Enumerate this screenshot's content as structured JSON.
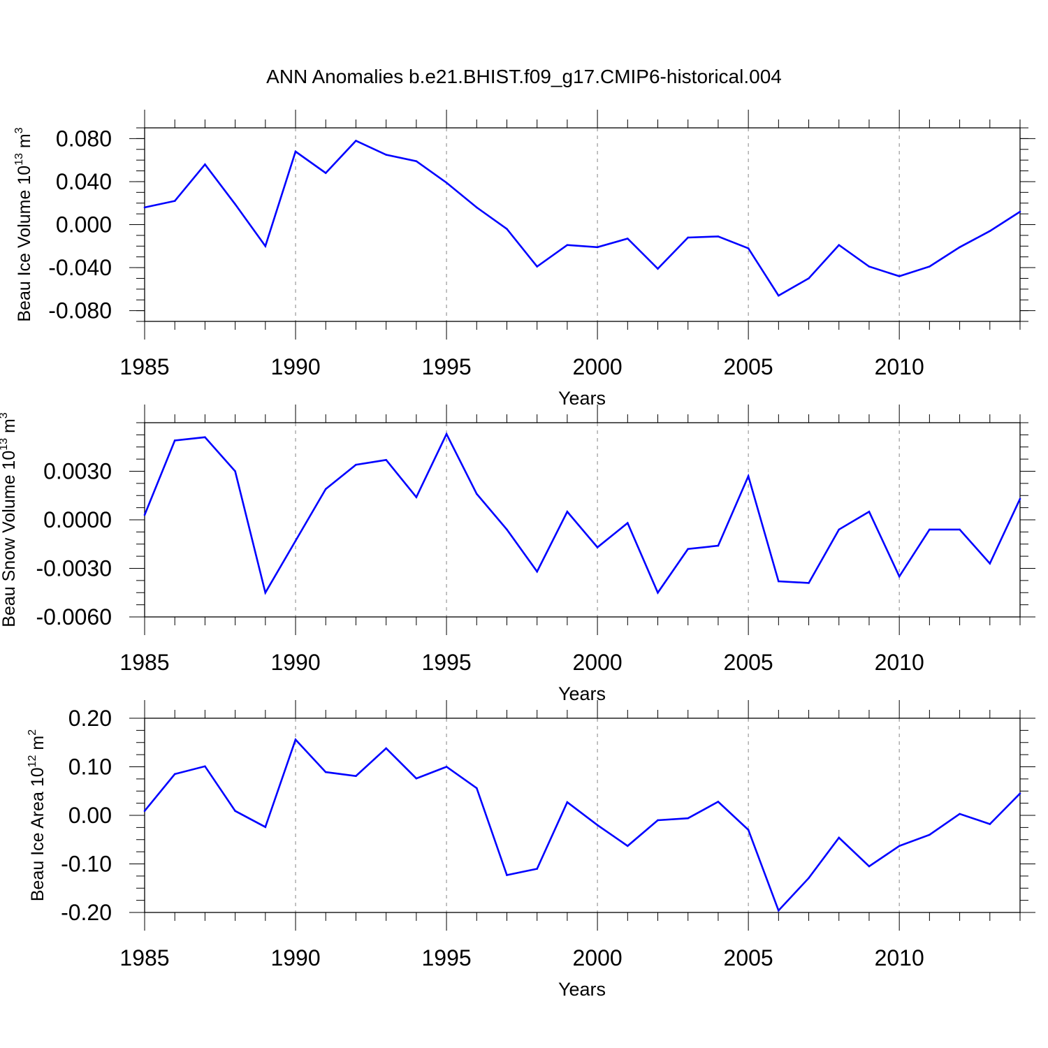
{
  "figure_title": "ANN Anomalies b.e21.BHIST.f09_g17.CMIP6-historical.004",
  "line_color": "#0000ff",
  "grid_color": "#999999",
  "chart_data": [
    {
      "type": "line",
      "ylabel": {
        "prefix": "Beau Ice Volume 10",
        "exponent": "13",
        "unit": " m",
        "unit_exponent": "3"
      },
      "xlabel": "Years",
      "xlim": [
        1985,
        2014
      ],
      "ylim": [
        -0.09,
        0.09
      ],
      "x_ticks": [
        "1985",
        "1990",
        "1995",
        "2000",
        "2005",
        "2010"
      ],
      "y_ticks": [
        {
          "value": 0.08,
          "label": "0.080"
        },
        {
          "value": 0.04,
          "label": "0.040"
        },
        {
          "value": 0.0,
          "label": "0.000"
        },
        {
          "value": -0.04,
          "label": "-0.040"
        },
        {
          "value": -0.08,
          "label": "-0.080"
        }
      ],
      "x": [
        1985,
        1986,
        1987,
        1988,
        1989,
        1990,
        1991,
        1992,
        1993,
        1994,
        1995,
        1996,
        1997,
        1998,
        1999,
        2000,
        2001,
        2002,
        2003,
        2004,
        2005,
        2006,
        2007,
        2008,
        2009,
        2010,
        2011,
        2012,
        2013,
        2014
      ],
      "values": [
        0.016,
        0.022,
        0.056,
        0.019,
        -0.02,
        0.068,
        0.048,
        0.078,
        0.065,
        0.059,
        0.039,
        0.016,
        -0.004,
        -0.039,
        -0.019,
        -0.021,
        -0.013,
        -0.041,
        -0.012,
        -0.011,
        -0.022,
        -0.066,
        -0.05,
        -0.019,
        -0.039,
        -0.048,
        -0.039,
        -0.021,
        -0.006,
        0.012
      ]
    },
    {
      "type": "line",
      "ylabel": {
        "prefix": "Beau Snow Volume 10",
        "exponent": "13",
        "unit": " m",
        "unit_exponent": "3"
      },
      "xlabel": "Years",
      "xlim": [
        1985,
        2014
      ],
      "ylim": [
        -0.006,
        0.006
      ],
      "x_ticks": [
        "1985",
        "1990",
        "1995",
        "2000",
        "2005",
        "2010"
      ],
      "y_ticks": [
        {
          "value": 0.003,
          "label": "0.0030"
        },
        {
          "value": 0.0,
          "label": "0.0000"
        },
        {
          "value": -0.003,
          "label": "-0.0030"
        },
        {
          "value": -0.006,
          "label": "-0.0060"
        }
      ],
      "x": [
        1985,
        1986,
        1987,
        1988,
        1989,
        1990,
        1991,
        1992,
        1993,
        1994,
        1995,
        1996,
        1997,
        1998,
        1999,
        2000,
        2001,
        2002,
        2003,
        2004,
        2005,
        2006,
        2007,
        2008,
        2009,
        2010,
        2011,
        2012,
        2013,
        2014
      ],
      "values": [
        0.0003,
        0.0049,
        0.0051,
        0.003,
        -0.0045,
        -0.0013,
        0.0019,
        0.0034,
        0.0037,
        0.0014,
        0.0053,
        0.0016,
        -0.0006,
        -0.0032,
        0.0005,
        -0.0017,
        -0.0002,
        -0.0045,
        -0.0018,
        -0.0016,
        0.0027,
        -0.0038,
        -0.0039,
        -0.0006,
        0.0005,
        -0.0035,
        -0.0006,
        -0.0006,
        -0.0027,
        0.0013
      ]
    },
    {
      "type": "line",
      "ylabel": {
        "prefix": "Beau Ice Area 10",
        "exponent": "12",
        "unit": " m",
        "unit_exponent": "2"
      },
      "xlabel": "Years",
      "xlim": [
        1985,
        2014
      ],
      "ylim": [
        -0.2,
        0.2
      ],
      "x_ticks": [
        "1985",
        "1990",
        "1995",
        "2000",
        "2005",
        "2010"
      ],
      "y_ticks": [
        {
          "value": 0.2,
          "label": "0.20"
        },
        {
          "value": 0.1,
          "label": "0.10"
        },
        {
          "value": 0.0,
          "label": "0.00"
        },
        {
          "value": -0.1,
          "label": "-0.10"
        },
        {
          "value": -0.2,
          "label": "-0.20"
        }
      ],
      "x": [
        1985,
        1986,
        1987,
        1988,
        1989,
        1990,
        1991,
        1992,
        1993,
        1994,
        1995,
        1996,
        1997,
        1998,
        1999,
        2000,
        2001,
        2002,
        2003,
        2004,
        2005,
        2006,
        2007,
        2008,
        2009,
        2010,
        2011,
        2012,
        2013,
        2014
      ],
      "values": [
        0.009,
        0.085,
        0.101,
        0.009,
        -0.024,
        0.156,
        0.089,
        0.081,
        0.138,
        0.076,
        0.1,
        0.056,
        -0.123,
        -0.11,
        0.027,
        -0.02,
        -0.063,
        -0.01,
        -0.006,
        0.028,
        -0.03,
        -0.196,
        -0.129,
        -0.046,
        -0.105,
        -0.063,
        -0.04,
        0.003,
        -0.018,
        0.045
      ]
    }
  ]
}
